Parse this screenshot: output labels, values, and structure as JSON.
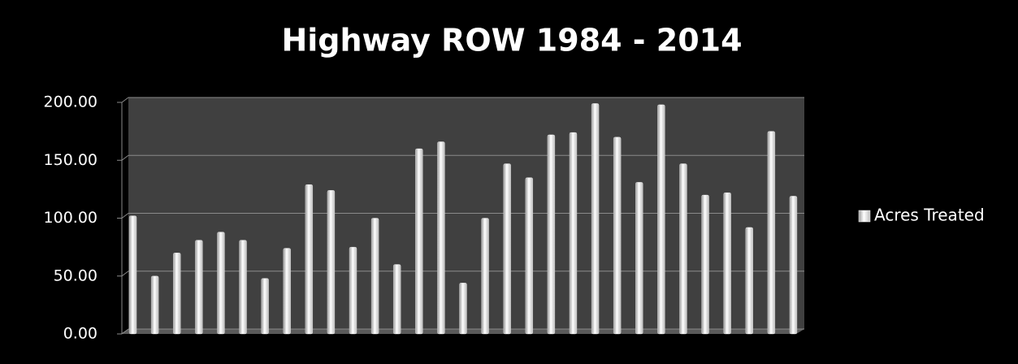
{
  "chart_data": {
    "type": "bar",
    "title": "Highway ROW 1984 - 2014",
    "categories": [
      null,
      null,
      null,
      null,
      null,
      null,
      null,
      null,
      null,
      null,
      null,
      null,
      null,
      null,
      null,
      null,
      null,
      null,
      null,
      null,
      null,
      null,
      null,
      null,
      null,
      null,
      null,
      null,
      null,
      null,
      null
    ],
    "series": [
      {
        "name": "Acres Treated",
        "color": "#ffffff",
        "values": [
          102,
          50,
          70,
          81,
          88,
          81,
          48,
          74,
          129,
          124,
          75,
          100,
          60,
          160,
          166,
          44,
          100,
          147,
          135,
          172,
          174,
          199,
          170,
          131,
          198,
          147,
          120,
          122,
          92,
          175,
          119
        ]
      }
    ],
    "ylim": [
      0,
      200
    ],
    "yticks": [
      {
        "value": 0,
        "label": "0.00"
      },
      {
        "value": 50,
        "label": "50.00"
      },
      {
        "value": 100,
        "label": "100.00"
      },
      {
        "value": 150,
        "label": "150.00"
      },
      {
        "value": 200,
        "label": "200.00"
      }
    ],
    "grid": true,
    "legend": "right"
  }
}
